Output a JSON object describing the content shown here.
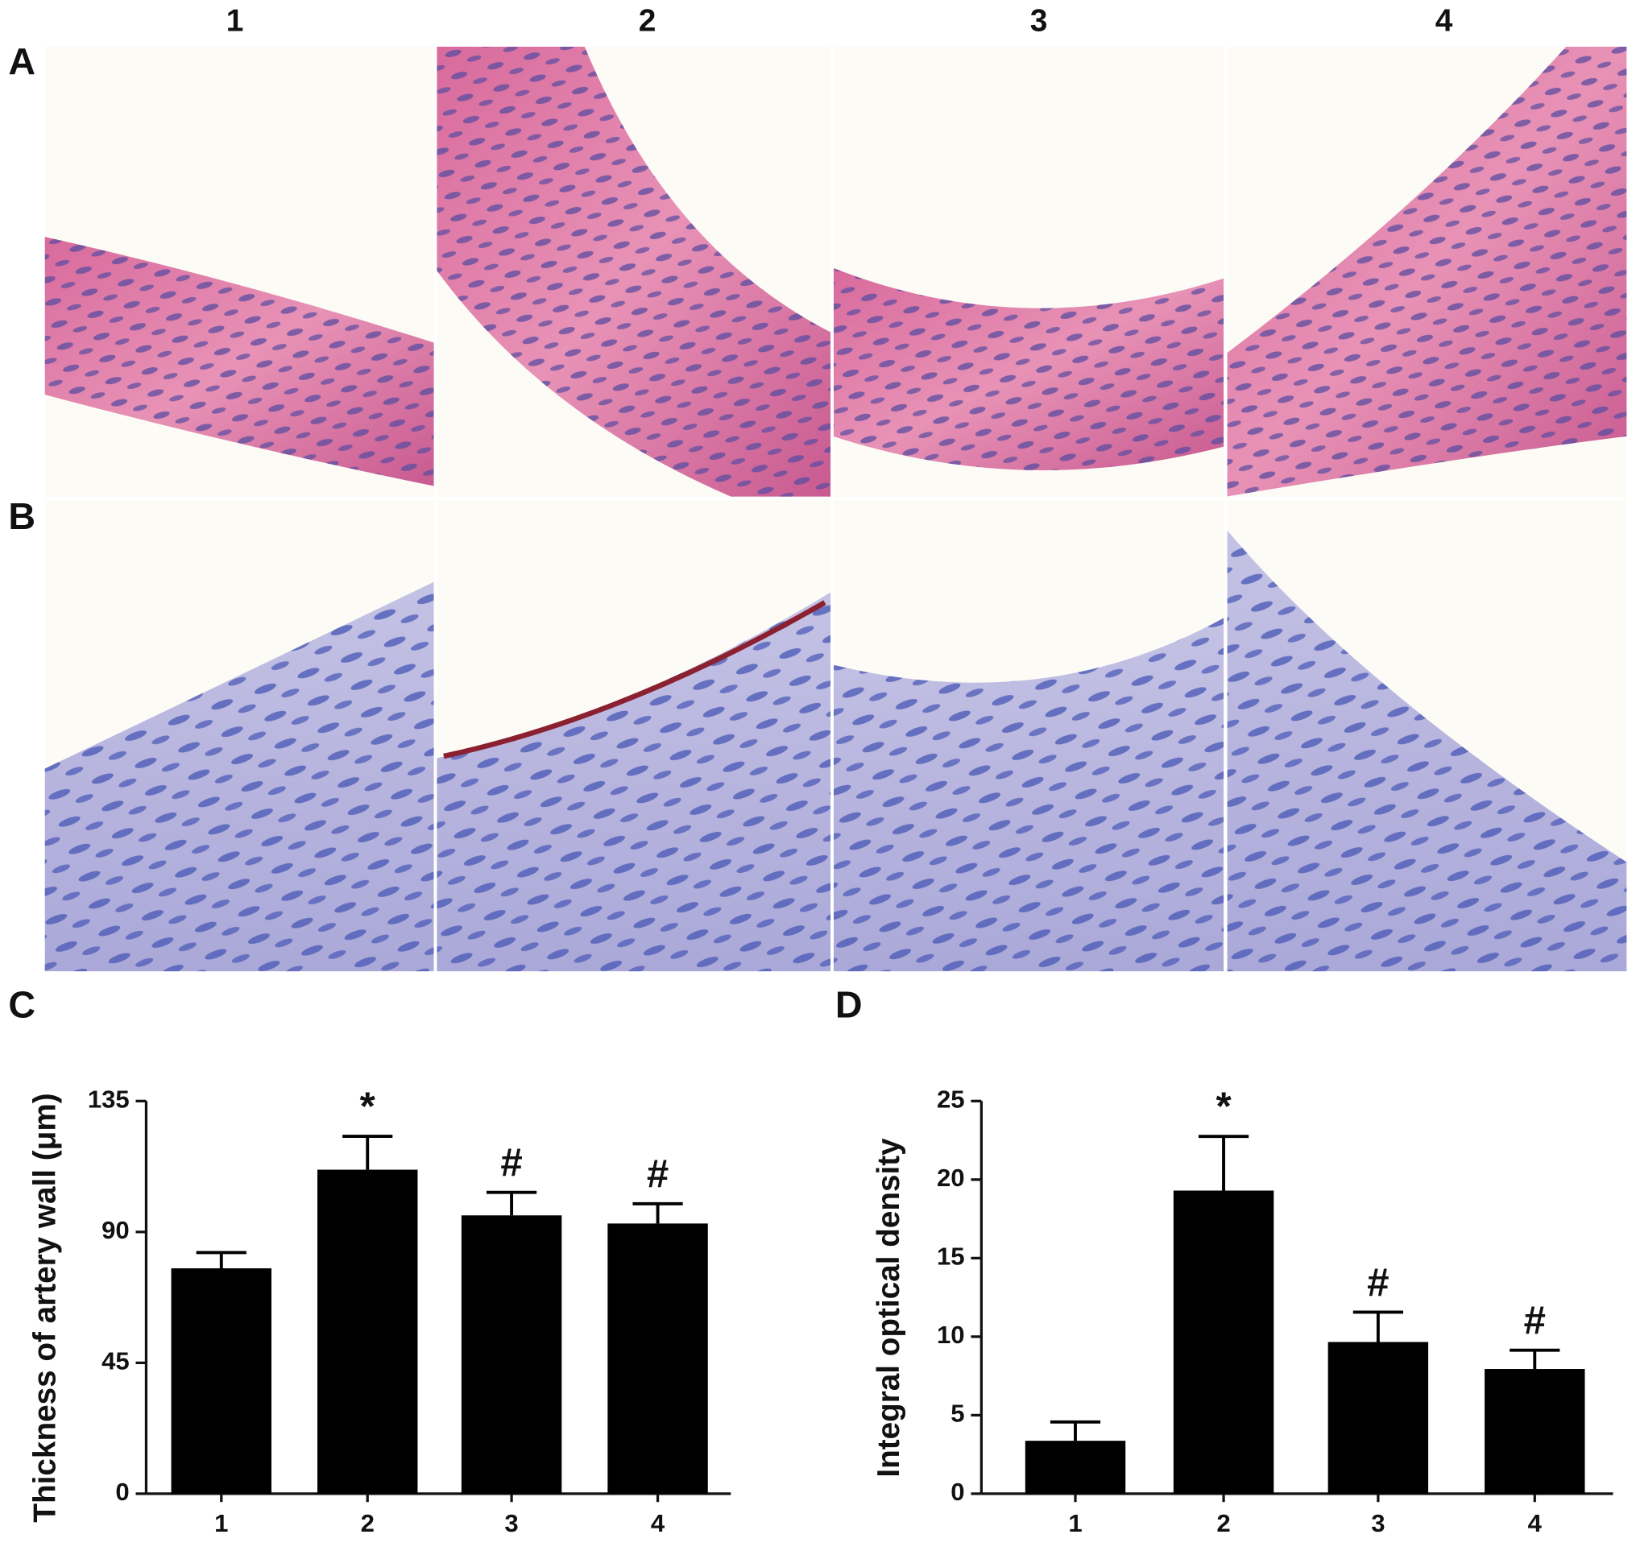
{
  "panel_labels": [
    "A",
    "B",
    "C",
    "D"
  ],
  "columns": [
    "1",
    "2",
    "3",
    "4"
  ],
  "chart_data": [
    {
      "type": "bar",
      "ylabel": "Thickness of artery wall (μm)",
      "categories": [
        "1",
        "2",
        "3",
        "4"
      ],
      "values": [
        77.5,
        111.4,
        95.7,
        92.9
      ],
      "errors": [
        5.4,
        11.5,
        7.9,
        6.8
      ],
      "annotations": [
        null,
        "*",
        "#",
        "#"
      ],
      "color": "#000000",
      "ylim": [
        0,
        135
      ],
      "yticks": [
        0,
        45,
        90,
        135
      ]
    },
    {
      "type": "bar",
      "ylabel": "Integral optical density",
      "categories": [
        "1",
        "2",
        "3",
        "4"
      ],
      "values": [
        3.37,
        19.3,
        9.66,
        7.94
      ],
      "errors": [
        1.2,
        3.45,
        1.9,
        1.2
      ],
      "annotations": [
        null,
        "*",
        "#",
        "#"
      ],
      "color": "#000000",
      "ylim": [
        0,
        25
      ],
      "yticks": [
        0,
        5,
        10,
        15,
        20,
        25
      ]
    }
  ]
}
